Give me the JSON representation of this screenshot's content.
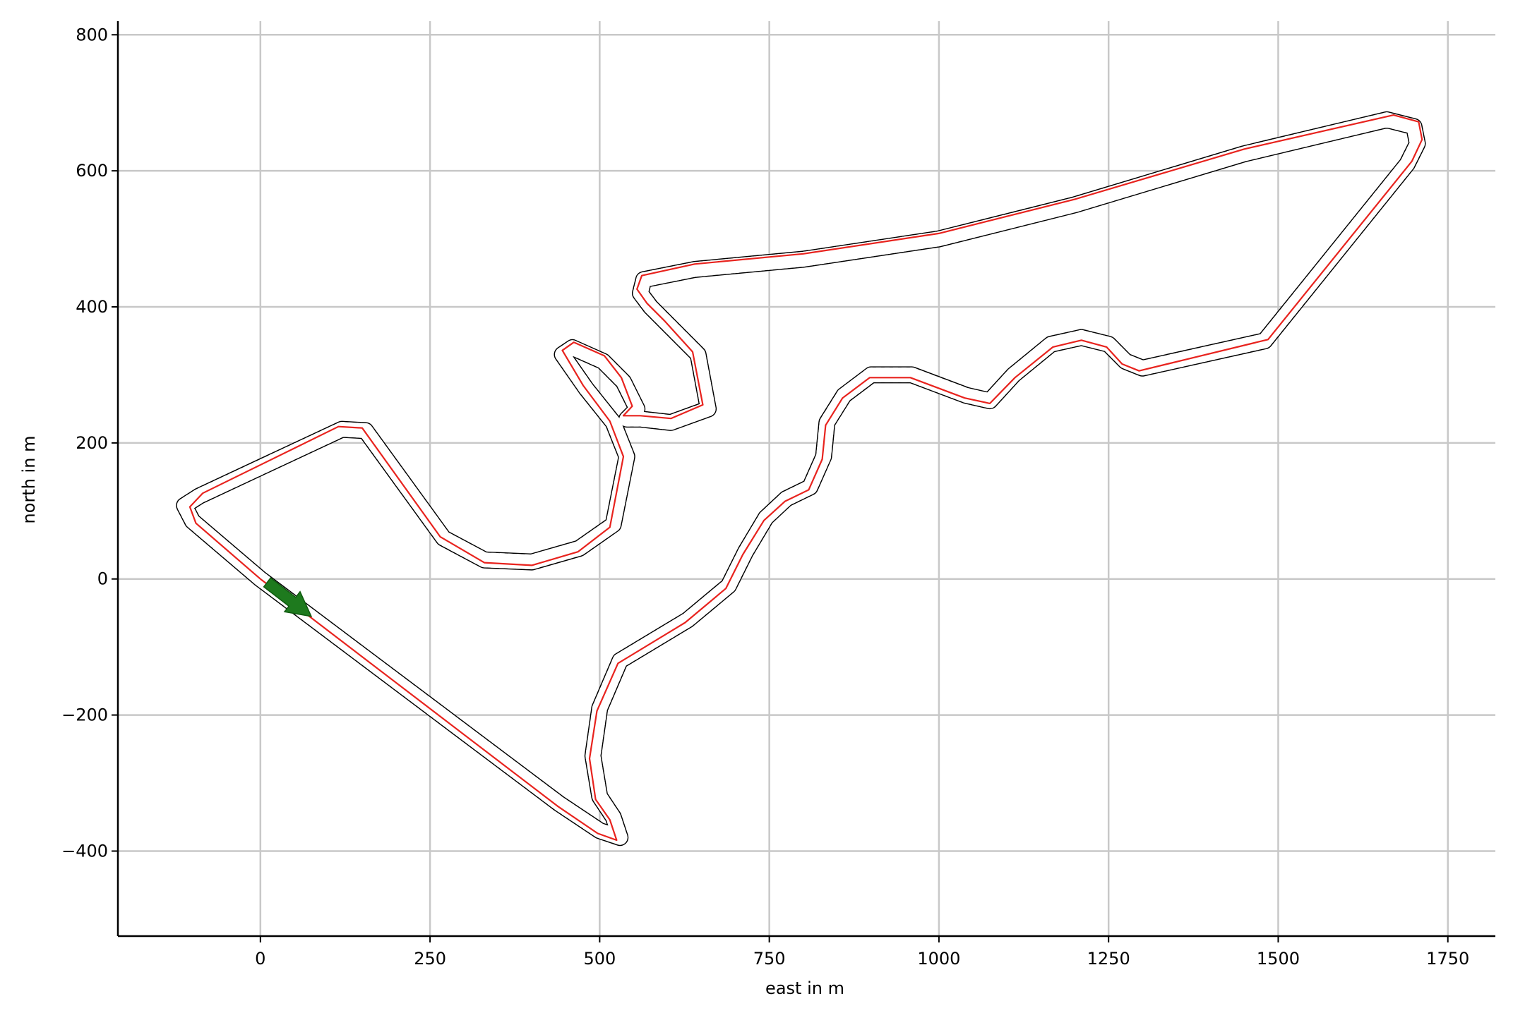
{
  "chart_data": {
    "type": "line",
    "title": "",
    "xlabel": "east in m",
    "ylabel": "north in m",
    "xlim": [
      -210,
      1820
    ],
    "ylim": [
      -525,
      820
    ],
    "x_ticks": [
      0,
      250,
      500,
      750,
      1000,
      1250,
      1500,
      1750
    ],
    "y_ticks": [
      -400,
      -200,
      0,
      200,
      400,
      600,
      800
    ],
    "x_tick_labels": [
      "0",
      "250",
      "500",
      "750",
      "1000",
      "1250",
      "1500",
      "1750"
    ],
    "y_tick_labels": [
      "−400",
      "−200",
      "0",
      "200",
      "400",
      "600",
      "800"
    ],
    "grid": true,
    "legend": "none",
    "colors": {
      "raceline": "#e8231e",
      "track_bounds": "#000000",
      "heading_arrow": "#1e7a1e",
      "grid": "#c8c8c8"
    },
    "series": [
      {
        "style": "dashed-black",
        "note_key": "track-centerline",
        "x": [
          0,
          -100,
          -112,
          -90,
          120,
          155,
          270,
          330,
          400,
          470,
          520,
          540,
          520,
          480,
          445,
          460,
          505,
          535,
          555,
          540,
          560,
          605,
          660,
          645,
          600,
          575,
          560,
          565,
          640,
          800,
          1000,
          1200,
          1450,
          1660,
          1700,
          1705,
          1690,
          1480,
          1300,
          1275,
          1250,
          1210,
          1165,
          1110,
          1075,
          1040,
          960,
          900,
          860,
          835,
          830,
          810,
          775,
          745,
          715,
          700,
          690,
          630,
          530,
          500,
          490,
          500,
          520,
          530,
          500,
          440,
          0
        ],
        "y": [
          0,
          85,
          108,
          122,
          220,
          218,
          60,
          28,
          25,
          45,
          80,
          180,
          230,
          280,
          330,
          340,
          320,
          290,
          250,
          235,
          235,
          230,
          250,
          330,
          375,
          400,
          420,
          440,
          455,
          470,
          500,
          550,
          625,
          675,
          665,
          640,
          610,
          350,
          310,
          320,
          345,
          355,
          345,
          300,
          262,
          270,
          300,
          300,
          270,
          230,
          180,
          135,
          118,
          90,
          40,
          10,
          -10,
          -60,
          -120,
          -190,
          -260,
          -320,
          -350,
          -380,
          -370,
          -330,
          0
        ]
      },
      {
        "style": "solid-red",
        "note_key": "raceline",
        "x": [
          0,
          -95,
          -104,
          -85,
          115,
          150,
          265,
          330,
          400,
          468,
          515,
          535,
          515,
          476,
          445,
          462,
          507,
          532,
          548,
          535,
          560,
          605,
          652,
          637,
          595,
          570,
          555,
          562,
          640,
          800,
          1000,
          1200,
          1450,
          1670,
          1707,
          1712,
          1697,
          1485,
          1295,
          1270,
          1247,
          1210,
          1168,
          1112,
          1075,
          1038,
          958,
          898,
          858,
          833,
          828,
          808,
          773,
          742,
          711,
          696,
          686,
          626,
          527,
          496,
          485,
          494,
          515,
          525,
          497,
          438,
          0
        ],
        "y": [
          0,
          82,
          106,
          126,
          224,
          222,
          62,
          24,
          20,
          40,
          76,
          180,
          232,
          284,
          336,
          348,
          328,
          296,
          254,
          240,
          240,
          236,
          256,
          334,
          380,
          405,
          426,
          446,
          463,
          478,
          508,
          558,
          632,
          682,
          672,
          646,
          614,
          352,
          306,
          316,
          341,
          351,
          341,
          296,
          258,
          266,
          296,
          296,
          266,
          226,
          176,
          131,
          114,
          86,
          36,
          6,
          -14,
          -64,
          -124,
          -194,
          -264,
          -324,
          -354,
          -384,
          -374,
          -334,
          0
        ]
      }
    ],
    "annotations": [
      {
        "type": "arrow",
        "from": [
          10,
          -5
        ],
        "to": [
          75,
          -55
        ]
      }
    ]
  }
}
